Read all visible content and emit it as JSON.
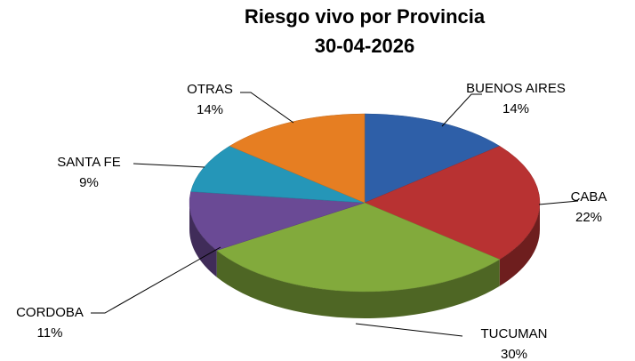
{
  "chart_data": {
    "type": "pie3d",
    "title": "Riesgo vivo por Provincia",
    "subtitle": "30-04-2026",
    "categories": [
      "BUENOS AIRES",
      "CABA",
      "TUCUMAN",
      "CORDOBA",
      "SANTA FE",
      "OTRAS"
    ],
    "values": [
      14,
      22,
      30,
      11,
      9,
      14
    ],
    "value_labels": [
      "14%",
      "22%",
      "30%",
      "11%",
      "9%",
      "14%"
    ],
    "colors": [
      "#2e5fa8",
      "#b83232",
      "#82aa3c",
      "#6a4a95",
      "#2596b8",
      "#e67e22"
    ]
  }
}
